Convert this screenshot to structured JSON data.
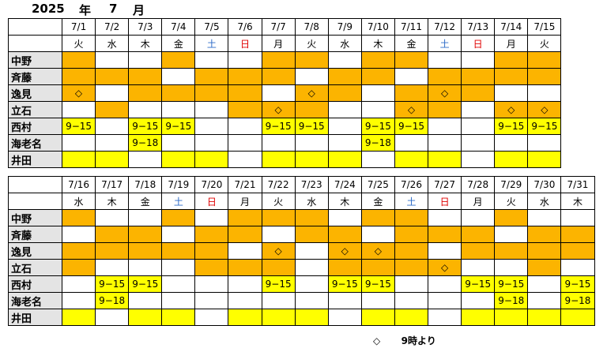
{
  "header": {
    "year": "2025",
    "year_char": "年",
    "month": "7",
    "month_char": "月"
  },
  "legend": {
    "symbol": "◇",
    "text": "9時より"
  },
  "colors": {
    "orange": "#fcb400",
    "yellow": "#ffff00",
    "header_gray": "#e4e4e4",
    "saturday": "#2e6cc8",
    "sunday": "#e00000"
  },
  "blocks": [
    {
      "dates": [
        "7/1",
        "7/2",
        "7/3",
        "7/4",
        "7/5",
        "7/6",
        "7/7",
        "7/8",
        "7/9",
        "7/10",
        "7/11",
        "7/12",
        "7/13",
        "7/14",
        "7/15"
      ],
      "weekdays": [
        "火",
        "水",
        "木",
        "金",
        "土",
        "日",
        "月",
        "火",
        "水",
        "木",
        "金",
        "土",
        "日",
        "月",
        "火"
      ],
      "rows": [
        {
          "name": "中野",
          "cells": [
            {
              "c": "o",
              "t": ""
            },
            {
              "c": "w",
              "t": ""
            },
            {
              "c": "w",
              "t": ""
            },
            {
              "c": "o",
              "t": ""
            },
            {
              "c": "w",
              "t": ""
            },
            {
              "c": "w",
              "t": ""
            },
            {
              "c": "o",
              "t": ""
            },
            {
              "c": "o",
              "t": ""
            },
            {
              "c": "w",
              "t": ""
            },
            {
              "c": "o",
              "t": ""
            },
            {
              "c": "o",
              "t": ""
            },
            {
              "c": "w",
              "t": ""
            },
            {
              "c": "w",
              "t": ""
            },
            {
              "c": "o",
              "t": ""
            },
            {
              "c": "o",
              "t": ""
            }
          ]
        },
        {
          "name": "斉藤",
          "cells": [
            {
              "c": "o",
              "t": ""
            },
            {
              "c": "o",
              "t": ""
            },
            {
              "c": "o",
              "t": ""
            },
            {
              "c": "w",
              "t": ""
            },
            {
              "c": "o",
              "t": ""
            },
            {
              "c": "o",
              "t": ""
            },
            {
              "c": "o",
              "t": ""
            },
            {
              "c": "w",
              "t": ""
            },
            {
              "c": "o",
              "t": ""
            },
            {
              "c": "o",
              "t": ""
            },
            {
              "c": "w",
              "t": ""
            },
            {
              "c": "o",
              "t": ""
            },
            {
              "c": "o",
              "t": ""
            },
            {
              "c": "o",
              "t": ""
            },
            {
              "c": "o",
              "t": ""
            }
          ]
        },
        {
          "name": "逸見",
          "cells": [
            {
              "c": "o",
              "t": "◇"
            },
            {
              "c": "w",
              "t": ""
            },
            {
              "c": "o",
              "t": ""
            },
            {
              "c": "o",
              "t": ""
            },
            {
              "c": "o",
              "t": ""
            },
            {
              "c": "o",
              "t": ""
            },
            {
              "c": "w",
              "t": ""
            },
            {
              "c": "o",
              "t": "◇"
            },
            {
              "c": "o",
              "t": ""
            },
            {
              "c": "w",
              "t": ""
            },
            {
              "c": "o",
              "t": ""
            },
            {
              "c": "o",
              "t": "◇"
            },
            {
              "c": "o",
              "t": ""
            },
            {
              "c": "w",
              "t": ""
            },
            {
              "c": "w",
              "t": ""
            }
          ]
        },
        {
          "name": "立石",
          "cells": [
            {
              "c": "w",
              "t": ""
            },
            {
              "c": "o",
              "t": ""
            },
            {
              "c": "w",
              "t": ""
            },
            {
              "c": "w",
              "t": ""
            },
            {
              "c": "w",
              "t": ""
            },
            {
              "c": "o",
              "t": ""
            },
            {
              "c": "o",
              "t": "◇"
            },
            {
              "c": "o",
              "t": ""
            },
            {
              "c": "w",
              "t": ""
            },
            {
              "c": "w",
              "t": ""
            },
            {
              "c": "o",
              "t": "◇"
            },
            {
              "c": "o",
              "t": ""
            },
            {
              "c": "w",
              "t": ""
            },
            {
              "c": "o",
              "t": "◇"
            },
            {
              "c": "o",
              "t": "◇"
            }
          ]
        },
        {
          "name": "西村",
          "cells": [
            {
              "c": "y",
              "t": "9−15"
            },
            {
              "c": "w",
              "t": ""
            },
            {
              "c": "y",
              "t": "9−15"
            },
            {
              "c": "y",
              "t": "9−15"
            },
            {
              "c": "w",
              "t": ""
            },
            {
              "c": "w",
              "t": ""
            },
            {
              "c": "y",
              "t": "9−15"
            },
            {
              "c": "y",
              "t": "9−15"
            },
            {
              "c": "w",
              "t": ""
            },
            {
              "c": "y",
              "t": "9−15"
            },
            {
              "c": "y",
              "t": "9−15"
            },
            {
              "c": "w",
              "t": ""
            },
            {
              "c": "w",
              "t": ""
            },
            {
              "c": "y",
              "t": "9−15"
            },
            {
              "c": "y",
              "t": "9−15"
            }
          ]
        },
        {
          "name": "海老名",
          "cells": [
            {
              "c": "w",
              "t": ""
            },
            {
              "c": "w",
              "t": ""
            },
            {
              "c": "y",
              "t": "9−18"
            },
            {
              "c": "w",
              "t": ""
            },
            {
              "c": "w",
              "t": ""
            },
            {
              "c": "w",
              "t": ""
            },
            {
              "c": "w",
              "t": ""
            },
            {
              "c": "w",
              "t": ""
            },
            {
              "c": "w",
              "t": ""
            },
            {
              "c": "y",
              "t": "9−18"
            },
            {
              "c": "w",
              "t": ""
            },
            {
              "c": "w",
              "t": ""
            },
            {
              "c": "w",
              "t": ""
            },
            {
              "c": "w",
              "t": ""
            },
            {
              "c": "w",
              "t": ""
            }
          ]
        },
        {
          "name": "井田",
          "cells": [
            {
              "c": "y",
              "t": ""
            },
            {
              "c": "y",
              "t": ""
            },
            {
              "c": "w",
              "t": ""
            },
            {
              "c": "y",
              "t": ""
            },
            {
              "c": "y",
              "t": ""
            },
            {
              "c": "w",
              "t": ""
            },
            {
              "c": "y",
              "t": ""
            },
            {
              "c": "y",
              "t": ""
            },
            {
              "c": "y",
              "t": ""
            },
            {
              "c": "w",
              "t": ""
            },
            {
              "c": "y",
              "t": ""
            },
            {
              "c": "y",
              "t": ""
            },
            {
              "c": "w",
              "t": ""
            },
            {
              "c": "y",
              "t": ""
            },
            {
              "c": "y",
              "t": ""
            }
          ]
        }
      ]
    },
    {
      "dates": [
        "7/16",
        "7/17",
        "7/18",
        "7/19",
        "7/20",
        "7/21",
        "7/22",
        "7/23",
        "7/24",
        "7/25",
        "7/26",
        "7/27",
        "7/28",
        "7/29",
        "7/30",
        "7/31"
      ],
      "weekdays": [
        "水",
        "木",
        "金",
        "土",
        "日",
        "月",
        "火",
        "水",
        "木",
        "金",
        "土",
        "日",
        "月",
        "火",
        "水",
        "木"
      ],
      "rows": [
        {
          "name": "中野",
          "cells": [
            {
              "c": "o",
              "t": ""
            },
            {
              "c": "w",
              "t": ""
            },
            {
              "c": "w",
              "t": ""
            },
            {
              "c": "o",
              "t": ""
            },
            {
              "c": "w",
              "t": ""
            },
            {
              "c": "o",
              "t": ""
            },
            {
              "c": "o",
              "t": ""
            },
            {
              "c": "o",
              "t": ""
            },
            {
              "c": "w",
              "t": ""
            },
            {
              "c": "o",
              "t": ""
            },
            {
              "c": "o",
              "t": ""
            },
            {
              "c": "w",
              "t": ""
            },
            {
              "c": "w",
              "t": ""
            },
            {
              "c": "o",
              "t": ""
            },
            {
              "c": "w",
              "t": ""
            },
            {
              "c": "w",
              "t": ""
            }
          ]
        },
        {
          "name": "斉藤",
          "cells": [
            {
              "c": "w",
              "t": ""
            },
            {
              "c": "o",
              "t": ""
            },
            {
              "c": "o",
              "t": ""
            },
            {
              "c": "w",
              "t": ""
            },
            {
              "c": "o",
              "t": ""
            },
            {
              "c": "o",
              "t": ""
            },
            {
              "c": "w",
              "t": ""
            },
            {
              "c": "o",
              "t": ""
            },
            {
              "c": "o",
              "t": ""
            },
            {
              "c": "w",
              "t": ""
            },
            {
              "c": "o",
              "t": ""
            },
            {
              "c": "o",
              "t": ""
            },
            {
              "c": "o",
              "t": ""
            },
            {
              "c": "w",
              "t": ""
            },
            {
              "c": "o",
              "t": ""
            },
            {
              "c": "o",
              "t": ""
            }
          ]
        },
        {
          "name": "逸見",
          "cells": [
            {
              "c": "o",
              "t": ""
            },
            {
              "c": "o",
              "t": ""
            },
            {
              "c": "o",
              "t": ""
            },
            {
              "c": "o",
              "t": ""
            },
            {
              "c": "o",
              "t": ""
            },
            {
              "c": "w",
              "t": ""
            },
            {
              "c": "o",
              "t": "◇"
            },
            {
              "c": "w",
              "t": ""
            },
            {
              "c": "o",
              "t": "◇"
            },
            {
              "c": "o",
              "t": "◇"
            },
            {
              "c": "o",
              "t": ""
            },
            {
              "c": "w",
              "t": ""
            },
            {
              "c": "o",
              "t": ""
            },
            {
              "c": "o",
              "t": ""
            },
            {
              "c": "o",
              "t": ""
            },
            {
              "c": "o",
              "t": ""
            }
          ]
        },
        {
          "name": "立石",
          "cells": [
            {
              "c": "o",
              "t": ""
            },
            {
              "c": "w",
              "t": ""
            },
            {
              "c": "w",
              "t": ""
            },
            {
              "c": "w",
              "t": ""
            },
            {
              "c": "o",
              "t": ""
            },
            {
              "c": "o",
              "t": ""
            },
            {
              "c": "o",
              "t": ""
            },
            {
              "c": "w",
              "t": ""
            },
            {
              "c": "o",
              "t": ""
            },
            {
              "c": "o",
              "t": ""
            },
            {
              "c": "o",
              "t": ""
            },
            {
              "c": "o",
              "t": "◇"
            },
            {
              "c": "w",
              "t": ""
            },
            {
              "c": "w",
              "t": ""
            },
            {
              "c": "o",
              "t": ""
            },
            {
              "c": "w",
              "t": ""
            }
          ]
        },
        {
          "name": "西村",
          "cells": [
            {
              "c": "w",
              "t": ""
            },
            {
              "c": "y",
              "t": "9−15"
            },
            {
              "c": "y",
              "t": "9−15"
            },
            {
              "c": "w",
              "t": ""
            },
            {
              "c": "w",
              "t": ""
            },
            {
              "c": "w",
              "t": ""
            },
            {
              "c": "y",
              "t": "9−15"
            },
            {
              "c": "w",
              "t": ""
            },
            {
              "c": "y",
              "t": "9−15"
            },
            {
              "c": "y",
              "t": "9−15"
            },
            {
              "c": "w",
              "t": ""
            },
            {
              "c": "w",
              "t": ""
            },
            {
              "c": "y",
              "t": "9−15"
            },
            {
              "c": "y",
              "t": "9−15"
            },
            {
              "c": "w",
              "t": ""
            },
            {
              "c": "y",
              "t": "9−15"
            }
          ]
        },
        {
          "name": "海老名",
          "cells": [
            {
              "c": "w",
              "t": ""
            },
            {
              "c": "y",
              "t": "9−18"
            },
            {
              "c": "w",
              "t": ""
            },
            {
              "c": "w",
              "t": ""
            },
            {
              "c": "w",
              "t": ""
            },
            {
              "c": "w",
              "t": ""
            },
            {
              "c": "w",
              "t": ""
            },
            {
              "c": "w",
              "t": ""
            },
            {
              "c": "w",
              "t": ""
            },
            {
              "c": "w",
              "t": ""
            },
            {
              "c": "w",
              "t": ""
            },
            {
              "c": "w",
              "t": ""
            },
            {
              "c": "w",
              "t": ""
            },
            {
              "c": "y",
              "t": "9−18"
            },
            {
              "c": "w",
              "t": ""
            },
            {
              "c": "y",
              "t": "9−18"
            }
          ]
        },
        {
          "name": "井田",
          "cells": [
            {
              "c": "y",
              "t": ""
            },
            {
              "c": "w",
              "t": ""
            },
            {
              "c": "y",
              "t": ""
            },
            {
              "c": "y",
              "t": ""
            },
            {
              "c": "w",
              "t": ""
            },
            {
              "c": "y",
              "t": ""
            },
            {
              "c": "y",
              "t": ""
            },
            {
              "c": "y",
              "t": ""
            },
            {
              "c": "w",
              "t": ""
            },
            {
              "c": "y",
              "t": ""
            },
            {
              "c": "y",
              "t": ""
            },
            {
              "c": "w",
              "t": ""
            },
            {
              "c": "y",
              "t": ""
            },
            {
              "c": "y",
              "t": ""
            },
            {
              "c": "y",
              "t": ""
            },
            {
              "c": "y",
              "t": ""
            }
          ]
        }
      ]
    }
  ]
}
